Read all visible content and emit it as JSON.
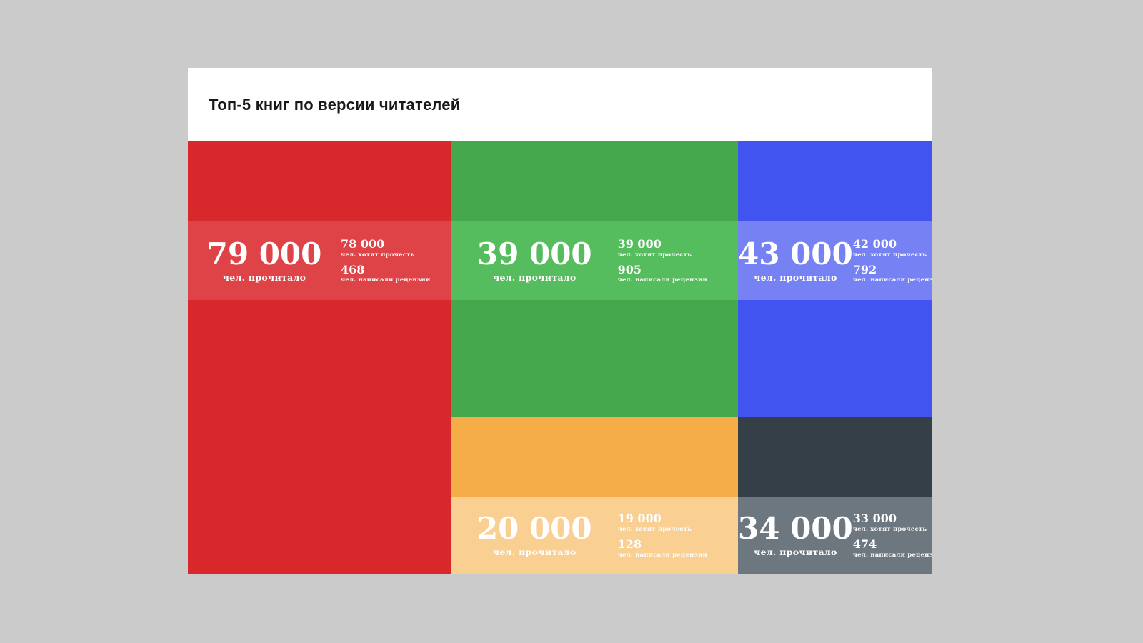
{
  "page": {
    "background_color": "#cbcbcb"
  },
  "card": {
    "title": "Топ-5 книг по версии читателей",
    "header_background": "#ffffff"
  },
  "labels": {
    "read": "чел. прочитало",
    "want": "чел. хотят прочесть",
    "reviews": "чел. написали рецензии"
  },
  "books": [
    {
      "read_display": "79 000",
      "want_display": "78 000",
      "reviews_display": "468",
      "color": "#d8282c",
      "band_color": "#de4347"
    },
    {
      "read_display": "39 000",
      "want_display": "39 000",
      "reviews_display": "905",
      "color": "#45a84d",
      "band_color": "#55bd5d"
    },
    {
      "read_display": "43 000",
      "want_display": "42 000",
      "reviews_display": "792",
      "color": "#4254f0",
      "band_color": "#7681f4"
    },
    {
      "read_display": "20 000",
      "want_display": "19 000",
      "reviews_display": "128",
      "color": "#f5ad47",
      "band_color": "#f9cf92"
    },
    {
      "read_display": "34 000",
      "want_display": "33 000",
      "reviews_display": "474",
      "color": "#343f47",
      "band_color": "#6d7780"
    }
  ],
  "chart_data": {
    "type": "table",
    "title": "Топ-5 книг по версии читателей",
    "columns": [
      "чел. прочитало",
      "чел. хотят прочесть",
      "чел. написали рецензии"
    ],
    "rows": [
      [
        79000,
        78000,
        468
      ],
      [
        39000,
        39000,
        905
      ],
      [
        43000,
        42000,
        792
      ],
      [
        20000,
        19000,
        128
      ],
      [
        34000,
        33000,
        474
      ]
    ],
    "layout": "treemap-style colored tiles: red full-height left column; green (top) and orange (bottom) middle column; blue (top) and dark-gray (bottom) right column; each tile has a lighter horizontal stats band",
    "tile_colors": [
      "#d8282c",
      "#45a84d",
      "#4254f0",
      "#f5ad47",
      "#343f47"
    ]
  }
}
